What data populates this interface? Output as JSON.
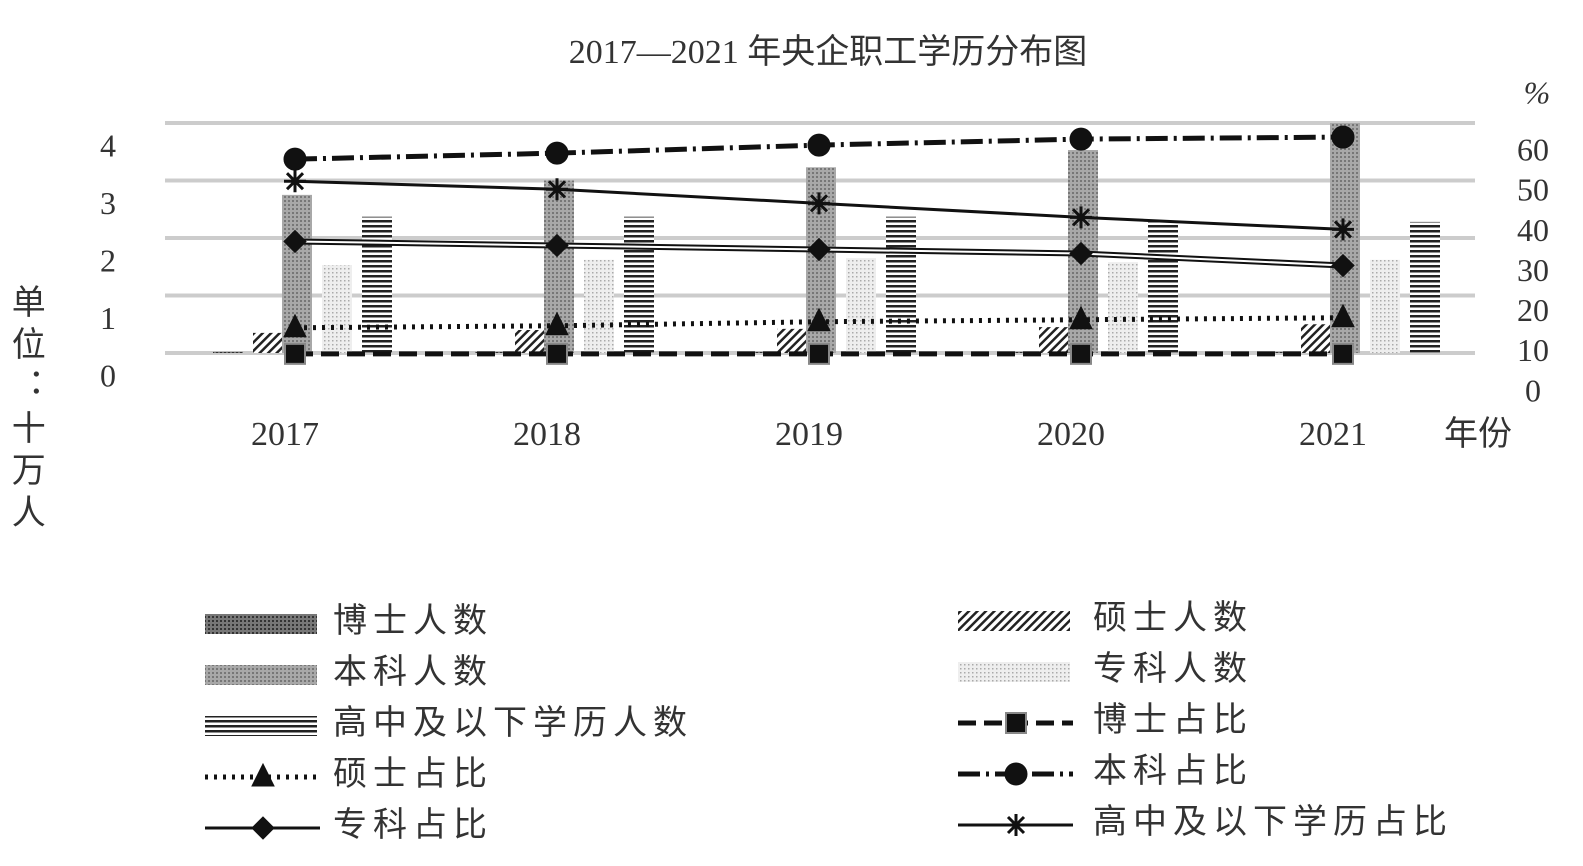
{
  "chart_data": {
    "type": "bar",
    "title": "2017—2021 年央企职工学历分布图",
    "y_label": "单位：十万人",
    "y2_label": "%",
    "x_label": "年份",
    "categories": [
      "2017",
      "2018",
      "2019",
      "2020",
      "2021"
    ],
    "ylim": [
      0,
      4
    ],
    "yticks": [
      0,
      1,
      2,
      3,
      4
    ],
    "y2lim": [
      0,
      70
    ],
    "y2ticks": [
      0,
      10,
      20,
      30,
      40,
      50,
      60
    ],
    "grid": true,
    "legend": "bottom",
    "series": [
      {
        "name": "博士人数",
        "type": "bar",
        "pattern": "dense",
        "color": "#555555",
        "values": [
          0.02,
          0.02,
          0.02,
          0.02,
          0.02
        ]
      },
      {
        "name": "硕士人数",
        "type": "bar",
        "pattern": "diagonal",
        "color": "#333333",
        "values": [
          0.35,
          0.4,
          0.42,
          0.45,
          0.5
        ]
      },
      {
        "name": "本科人数",
        "type": "bar",
        "pattern": "gray",
        "color": "#999999",
        "values": [
          2.75,
          3.0,
          3.23,
          3.53,
          4.0
        ]
      },
      {
        "name": "专科人数",
        "type": "bar",
        "pattern": "light",
        "color": "#d6d6d6",
        "values": [
          1.53,
          1.62,
          1.65,
          1.58,
          1.62
        ]
      },
      {
        "name": "高中及以下学历人数",
        "type": "bar",
        "pattern": "hlines",
        "color": "#222222",
        "values": [
          2.37,
          2.37,
          2.37,
          2.28,
          2.28
        ]
      },
      {
        "name": "博士占比",
        "type": "line",
        "axis": "y2",
        "dash": "18 8",
        "marker": "square",
        "color": "#111111",
        "values": [
          10,
          10,
          10,
          10,
          10
        ]
      },
      {
        "name": "硕士占比",
        "type": "line",
        "axis": "y2",
        "dash": "3 6",
        "marker": "triangle",
        "color": "#111111",
        "values": [
          16.5,
          17,
          18,
          18.5,
          19
        ]
      },
      {
        "name": "本科占比",
        "type": "line",
        "axis": "y2",
        "dash": "22 6 3 6",
        "marker": "circle",
        "color": "#111111",
        "values": [
          58.5,
          60,
          62,
          63.5,
          64
        ]
      },
      {
        "name": "专科占比",
        "type": "line",
        "axis": "y2",
        "dash": "",
        "marker": "diamond",
        "color": "#111111",
        "values": [
          38,
          37,
          36,
          35,
          32
        ]
      },
      {
        "name": "高中及以下学历占比",
        "type": "line",
        "axis": "y2",
        "dash": "",
        "marker": "asterisk",
        "color": "#111111",
        "values": [
          53,
          51,
          47.5,
          44,
          41
        ]
      }
    ]
  }
}
